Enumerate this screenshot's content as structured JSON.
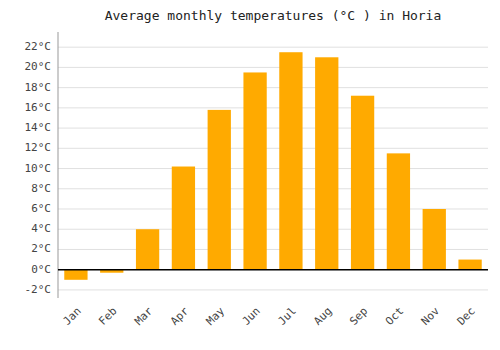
{
  "chart_data": {
    "type": "bar",
    "title": "Average monthly temperatures (°C ) in Horia",
    "categories": [
      "Jan",
      "Feb",
      "Mar",
      "Apr",
      "May",
      "Jun",
      "Jul",
      "Aug",
      "Sep",
      "Oct",
      "Nov",
      "Dec"
    ],
    "values": [
      -1.0,
      -0.3,
      4.0,
      10.2,
      15.8,
      19.5,
      21.5,
      21.0,
      17.2,
      11.5,
      6.0,
      1.0
    ],
    "color": "#FFAA00",
    "ylim": [
      -2.8,
      23.5
    ],
    "yticks": [
      {
        "value": -2,
        "label": "-2°C"
      },
      {
        "value": 0,
        "label": "0°C"
      },
      {
        "value": 2,
        "label": "2°C"
      },
      {
        "value": 4,
        "label": "4°C"
      },
      {
        "value": 6,
        "label": "6°C"
      },
      {
        "value": 8,
        "label": "8°C"
      },
      {
        "value": 10,
        "label": "10°C"
      },
      {
        "value": 12,
        "label": "12°C"
      },
      {
        "value": 14,
        "label": "14°C"
      },
      {
        "value": 16,
        "label": "16°C"
      },
      {
        "value": 18,
        "label": "18°C"
      },
      {
        "value": 20,
        "label": "20°C"
      },
      {
        "value": 22,
        "label": "22°C"
      }
    ],
    "grid": true
  }
}
